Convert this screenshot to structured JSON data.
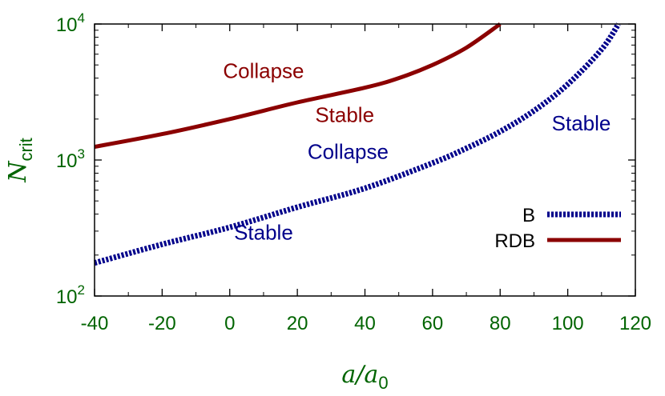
{
  "chart_data": {
    "type": "line",
    "title": "",
    "xlabel": "a/a0",
    "ylabel": "Ncrit",
    "xlim": [
      -40,
      120
    ],
    "ylim": [
      100,
      10000
    ],
    "yscale": "log",
    "grid": false,
    "legend_position": "right",
    "x_ticks": [
      -40,
      -20,
      0,
      20,
      40,
      60,
      80,
      100,
      120
    ],
    "x_tick_labels": [
      "-40",
      "-20",
      "0",
      "20",
      "40",
      "60",
      "80",
      "100",
      "120"
    ],
    "y_ticks": [
      {
        "value": 100,
        "base": "10",
        "exp": "2"
      },
      {
        "value": 1000,
        "base": "10",
        "exp": "3"
      },
      {
        "value": 10000,
        "base": "10",
        "exp": "4"
      }
    ],
    "series": [
      {
        "name": "B",
        "style": "dotted",
        "color": "#00008b",
        "x": [
          -40,
          -20,
          0,
          20,
          40,
          60,
          70,
          80,
          90,
          100,
          110,
          115
        ],
        "y": [
          175,
          240,
          320,
          450,
          620,
          950,
          1220,
          1620,
          2300,
          3600,
          6500,
          10000
        ]
      },
      {
        "name": "RDB",
        "style": "solid",
        "color": "#8b0000",
        "x": [
          -40,
          -20,
          0,
          20,
          40,
          50,
          60,
          70,
          80
        ],
        "y": [
          1250,
          1550,
          2000,
          2650,
          3400,
          4000,
          5000,
          6700,
          10000
        ]
      }
    ],
    "annotations": [
      {
        "text": "Collapse",
        "color": "#8b0000",
        "x": 10,
        "y": 4000
      },
      {
        "text": "Stable",
        "color": "#8b0000",
        "x": 34,
        "y": 1900
      },
      {
        "text": "Collapse",
        "color": "#00008b",
        "x": 35,
        "y": 1020
      },
      {
        "text": "Stable",
        "color": "#00008b",
        "x": 104,
        "y": 1650
      },
      {
        "text": "Stable",
        "color": "#00008b",
        "x": 10,
        "y": 260
      }
    ]
  },
  "colors": {
    "axis_text": "#006400",
    "frame": "#000000"
  }
}
